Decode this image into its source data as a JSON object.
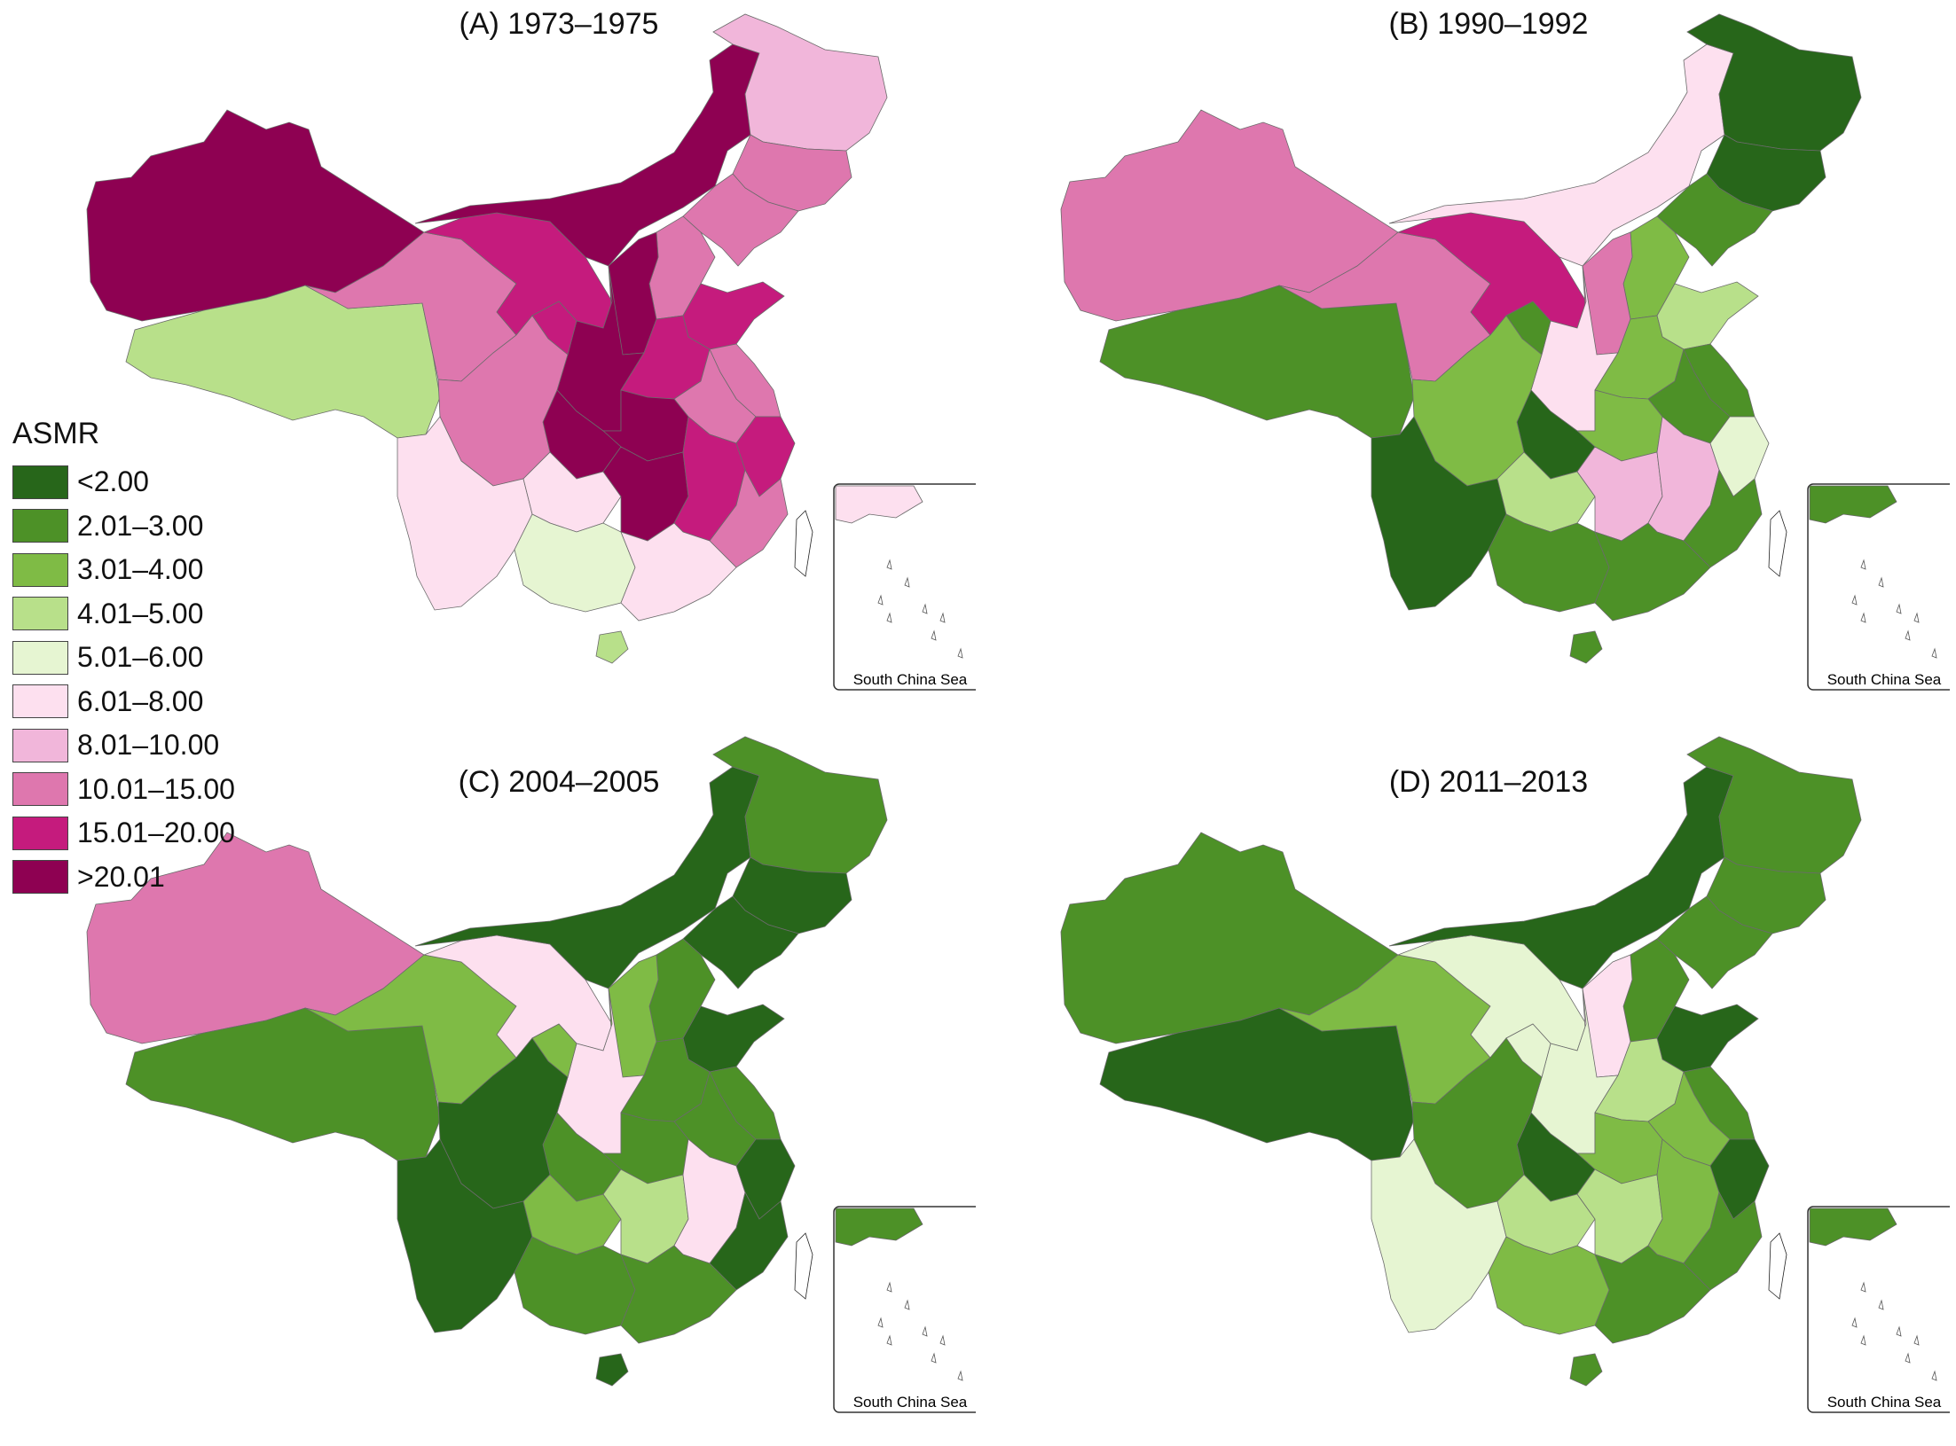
{
  "legend": {
    "title": "ASMR",
    "items": [
      {
        "label": "<2.00",
        "color": "#27661a"
      },
      {
        "label": "2.01–3.00",
        "color": "#4d9127"
      },
      {
        "label": "3.01–4.00",
        "color": "#7fbb45"
      },
      {
        "label": "4.01–5.00",
        "color": "#b8e08a"
      },
      {
        "label": "5.01–6.00",
        "color": "#e6f5d2"
      },
      {
        "label": "6.01–8.00",
        "color": "#fde0ef"
      },
      {
        "label": "8.01–10.00",
        "color": "#f1b6da"
      },
      {
        "label": "10.01–15.00",
        "color": "#de77ae"
      },
      {
        "label": "15.01–20.00",
        "color": "#c51b7d"
      },
      {
        "label": ">20.01",
        "color": "#8e0152"
      }
    ]
  },
  "panels": [
    {
      "title": "(A) 1973–1975",
      "inset_label": "South China Sea",
      "fills": {
        "xinjiang": 9,
        "tibet": 3,
        "qinghai": 7,
        "gansu": 8,
        "inner_mongolia": 9,
        "heilongjiang": 6,
        "jilin": 7,
        "liaoning": 7,
        "hebei": 7,
        "beijing": 7,
        "shanxi": 9,
        "shaanxi": 9,
        "ningxia": 8,
        "henan": 8,
        "shandong": 8,
        "jiangsu": 7,
        "anhui": 7,
        "hubei": 9,
        "chongqing": 9,
        "sichuan": 7,
        "yunnan": 5,
        "guizhou": 5,
        "hunan": 9,
        "jiangxi": 8,
        "zhejiang": 8,
        "fujian": 7,
        "guangxi": 4,
        "guangdong": 5,
        "hainan": 3,
        "taiwan": -1
      }
    },
    {
      "title": "(B) 1990–1992",
      "inset_label": "South China Sea",
      "fills": {
        "xinjiang": 7,
        "tibet": 1,
        "qinghai": 7,
        "gansu": 8,
        "inner_mongolia": 5,
        "heilongjiang": 0,
        "jilin": 0,
        "liaoning": 1,
        "hebei": 2,
        "beijing": 0,
        "shanxi": 7,
        "shaanxi": 5,
        "ningxia": 1,
        "henan": 2,
        "shandong": 3,
        "jiangsu": 1,
        "anhui": 1,
        "hubei": 2,
        "chongqing": 0,
        "sichuan": 2,
        "yunnan": 0,
        "guizhou": 3,
        "hunan": 6,
        "jiangxi": 6,
        "zhejiang": 4,
        "fujian": 1,
        "guangxi": 1,
        "guangdong": 1,
        "hainan": 1,
        "taiwan": -1
      }
    },
    {
      "title": "(C) 2004–2005",
      "inset_label": "South China Sea",
      "fills": {
        "xinjiang": 7,
        "tibet": 1,
        "qinghai": 2,
        "gansu": 5,
        "inner_mongolia": 0,
        "heilongjiang": 1,
        "jilin": 0,
        "liaoning": 0,
        "hebei": 1,
        "beijing": 1,
        "shanxi": 2,
        "shaanxi": 5,
        "ningxia": 2,
        "henan": 1,
        "shandong": 0,
        "jiangsu": 1,
        "anhui": 1,
        "hubei": 1,
        "chongqing": 1,
        "sichuan": 0,
        "yunnan": 0,
        "guizhou": 2,
        "hunan": 3,
        "jiangxi": 5,
        "zhejiang": 0,
        "fujian": 0,
        "guangxi": 1,
        "guangdong": 1,
        "hainan": 0,
        "taiwan": -1
      }
    },
    {
      "title": "(D) 2011–2013",
      "inset_label": "South China Sea",
      "fills": {
        "xinjiang": 1,
        "tibet": 0,
        "qinghai": 2,
        "gansu": 4,
        "inner_mongolia": 0,
        "heilongjiang": 1,
        "jilin": 1,
        "liaoning": 1,
        "hebei": 1,
        "beijing": 0,
        "shanxi": 5,
        "shaanxi": 4,
        "ningxia": 4,
        "henan": 3,
        "shandong": 0,
        "jiangsu": 1,
        "anhui": 2,
        "hubei": 2,
        "chongqing": 0,
        "sichuan": 1,
        "yunnan": 4,
        "guizhou": 3,
        "hunan": 3,
        "jiangxi": 2,
        "zhejiang": 0,
        "fujian": 1,
        "guangxi": 2,
        "guangdong": 1,
        "hainan": 1,
        "taiwan": -1
      }
    }
  ]
}
